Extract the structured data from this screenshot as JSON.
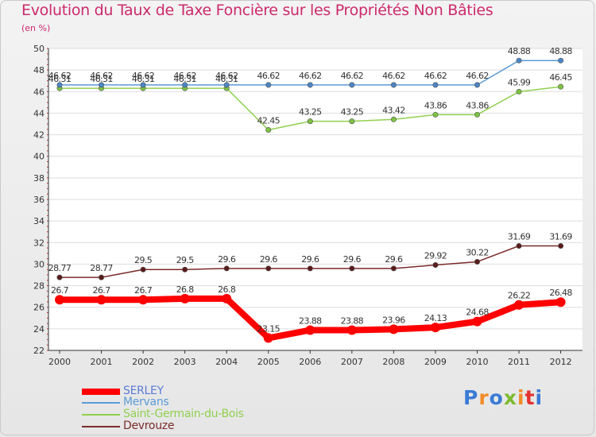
{
  "title": "Evolution du Taux de Taxe Foncière sur les Propriétés Non Bâties",
  "unit_label": "(en %)",
  "logo": {
    "text": "Proxiti",
    "colors": [
      "#3a7bd5",
      "#f28c28",
      "#3a7bd5",
      "#7dbb2e",
      "#f28c28",
      "#e4332f",
      "#3a7bd5"
    ]
  },
  "chart_data": {
    "type": "line",
    "title": "Evolution du Taux de Taxe Foncière sur les Propriétés Non Bâties",
    "ylabel": "(en %)",
    "xlabel": "",
    "x": [
      "2000",
      "2001",
      "2002",
      "2003",
      "2004",
      "2005",
      "2006",
      "2007",
      "2008",
      "2009",
      "2010",
      "2011",
      "2012"
    ],
    "ylim": [
      22,
      50
    ],
    "yticks": [
      22,
      24,
      26,
      28,
      30,
      32,
      34,
      36,
      38,
      40,
      42,
      44,
      46,
      48,
      50
    ],
    "grid": "horizontal",
    "series": [
      {
        "name": "SERLEY",
        "color": "#ff0000",
        "values": [
          26.7,
          26.7,
          26.7,
          26.8,
          26.8,
          23.15,
          23.88,
          23.88,
          23.96,
          24.13,
          24.68,
          26.22,
          26.48
        ],
        "labels": [
          "26.7",
          "26.7",
          "26.7",
          "26.8",
          "26.8",
          "23.15",
          "23.88",
          "23.88",
          "23.96",
          "24.13",
          "24.68",
          "26.22",
          "26.48"
        ]
      },
      {
        "name": "Mervans",
        "color": "#5b9bd5",
        "values": [
          46.62,
          46.62,
          46.62,
          46.62,
          46.62,
          46.62,
          46.62,
          46.62,
          46.62,
          46.62,
          46.62,
          48.88,
          48.88
        ],
        "labels": [
          "46.62",
          "46.62",
          "46.62",
          "46.62",
          "46.62",
          "46.62",
          "46.62",
          "46.62",
          "46.62",
          "46.62",
          "46.62",
          "48.88",
          "48.88"
        ]
      },
      {
        "name": "Saint-Germain-du-Bois",
        "color": "#92d050",
        "values": [
          46.31,
          46.31,
          46.31,
          46.31,
          46.31,
          42.45,
          43.25,
          43.25,
          43.42,
          43.86,
          43.86,
          45.99,
          46.45
        ],
        "labels": [
          "46.31",
          "46.31",
          "46.31",
          "46.31",
          "46.31",
          "42.45",
          "43.25",
          "43.25",
          "43.42",
          "43.86",
          "43.86",
          "45.99",
          "46.45"
        ]
      },
      {
        "name": "Devrouze",
        "color": "#7b2b2b",
        "values": [
          28.77,
          28.77,
          29.5,
          29.5,
          29.6,
          29.6,
          29.6,
          29.6,
          29.6,
          29.92,
          30.22,
          31.69,
          31.69
        ],
        "labels": [
          "28.77",
          "28.77",
          "29.5",
          "29.5",
          "29.6",
          "29.6",
          "29.6",
          "29.6",
          "29.6",
          "29.92",
          "30.22",
          "31.69",
          "31.69"
        ]
      }
    ],
    "legend": "bottom-left"
  }
}
